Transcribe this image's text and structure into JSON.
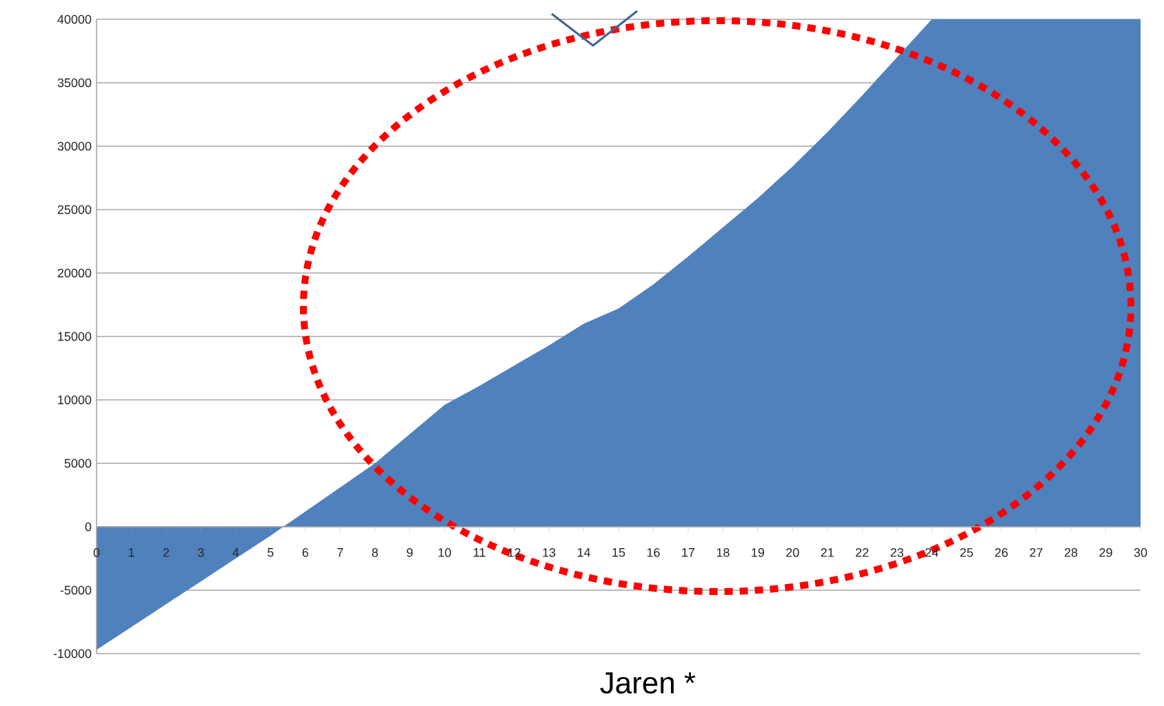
{
  "chart_data": {
    "type": "area",
    "xlabel": "Jaren *",
    "x": [
      0,
      1,
      2,
      3,
      4,
      5,
      6,
      7,
      8,
      9,
      10,
      11,
      12,
      13,
      14,
      15,
      16,
      17,
      18,
      19,
      20,
      21,
      22,
      23,
      24,
      25,
      26,
      27,
      28,
      29,
      30
    ],
    "values": [
      -9700,
      -7900,
      -6100,
      -4300,
      -2500,
      -700,
      1200,
      3100,
      5000,
      7300,
      9600,
      11100,
      12700,
      14300,
      16000,
      17200,
      19100,
      21300,
      23600,
      25900,
      28400,
      31100,
      34000,
      37000,
      40000,
      40000,
      40000,
      40000,
      40000,
      40000,
      40000
    ],
    "color": "#4f81bd",
    "xlim": [
      0,
      30
    ],
    "xticks": [
      0,
      1,
      2,
      3,
      4,
      5,
      6,
      7,
      8,
      9,
      10,
      11,
      12,
      13,
      14,
      15,
      16,
      17,
      18,
      19,
      20,
      21,
      22,
      23,
      24,
      25,
      26,
      27,
      28,
      29,
      30
    ],
    "ylim": [
      -10000,
      40000
    ],
    "yticks": [
      -10000,
      -5000,
      0,
      5000,
      10000,
      15000,
      20000,
      25000,
      30000,
      35000,
      40000
    ],
    "grid": "y"
  }
}
